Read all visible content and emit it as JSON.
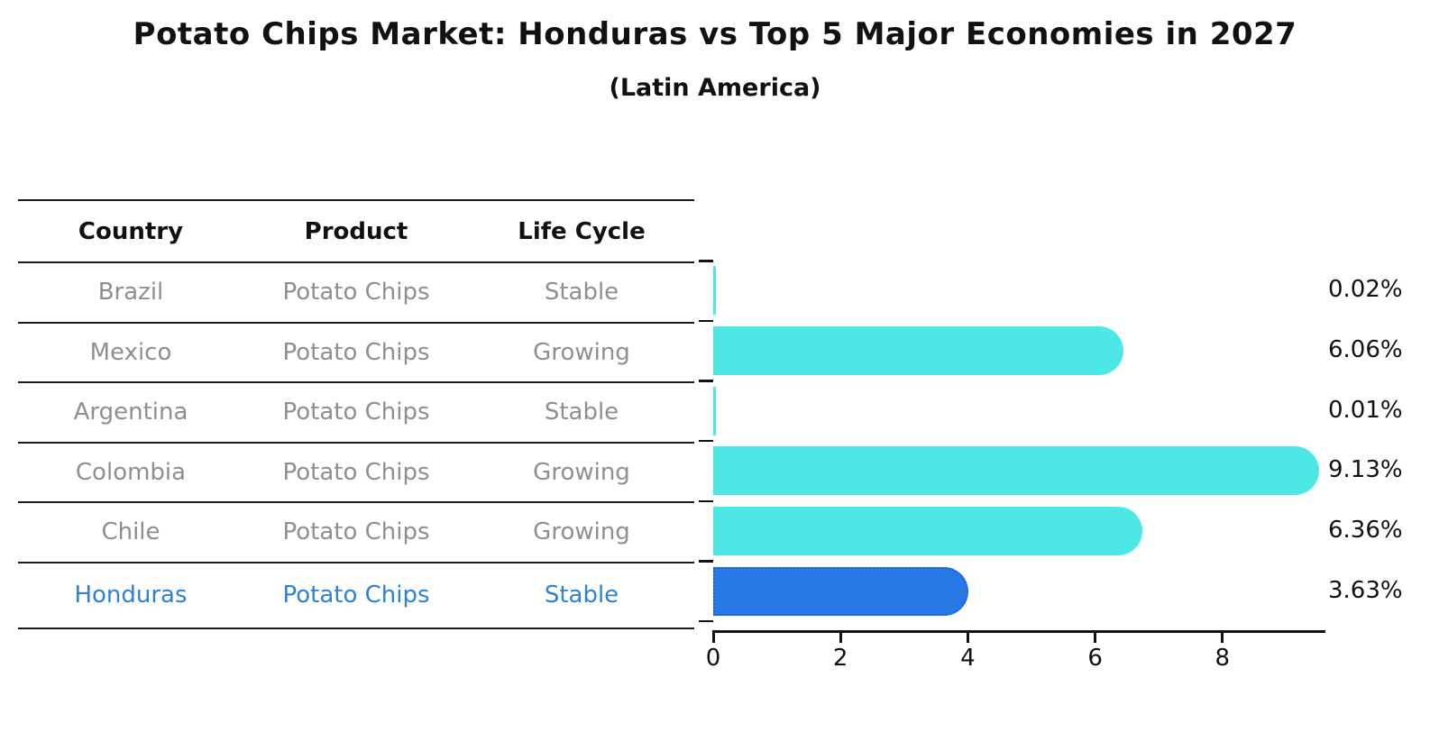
{
  "title": "Potato Chips Market: Honduras vs Top 5 Major Economies in 2027",
  "subtitle": "(Latin America)",
  "table": {
    "headers": [
      "Country",
      "Product",
      "Life Cycle"
    ],
    "rows": [
      {
        "country": "Brazil",
        "product": "Potato Chips",
        "life_cycle": "Stable"
      },
      {
        "country": "Mexico",
        "product": "Potato Chips",
        "life_cycle": "Growing"
      },
      {
        "country": "Argentina",
        "product": "Potato Chips",
        "life_cycle": "Stable"
      },
      {
        "country": "Colombia",
        "product": "Potato Chips",
        "life_cycle": "Growing"
      },
      {
        "country": "Chile",
        "product": "Potato Chips",
        "life_cycle": "Growing"
      },
      {
        "country": "Honduras",
        "product": "Potato Chips",
        "life_cycle": "Stable"
      }
    ],
    "highlighted_row": "Honduras"
  },
  "chart_data": {
    "type": "bar",
    "orientation": "horizontal",
    "categories": [
      "Brazil",
      "Mexico",
      "Argentina",
      "Colombia",
      "Chile",
      "Honduras"
    ],
    "values": [
      0.02,
      6.06,
      0.01,
      9.13,
      6.36,
      3.63
    ],
    "value_labels": [
      "0.02%",
      "6.06%",
      "0.01%",
      "9.13%",
      "6.36%",
      "3.63%"
    ],
    "unit": "%",
    "xticks": [
      "0",
      "2",
      "4",
      "6",
      "8"
    ],
    "xlim": [
      0,
      9.6
    ],
    "grid": false,
    "legend": false,
    "bar_color": "#4DE8E6",
    "highlight_bar_color": "#2778E5",
    "highlight_edge_color": "#1663CF",
    "highlight_edge_style": "dotted",
    "highlight_index": 5
  },
  "colors": {
    "header_text": "#111111",
    "table_text": "#8F8F8F",
    "highlight_text": "#2E82D6",
    "axis": "#111111"
  }
}
